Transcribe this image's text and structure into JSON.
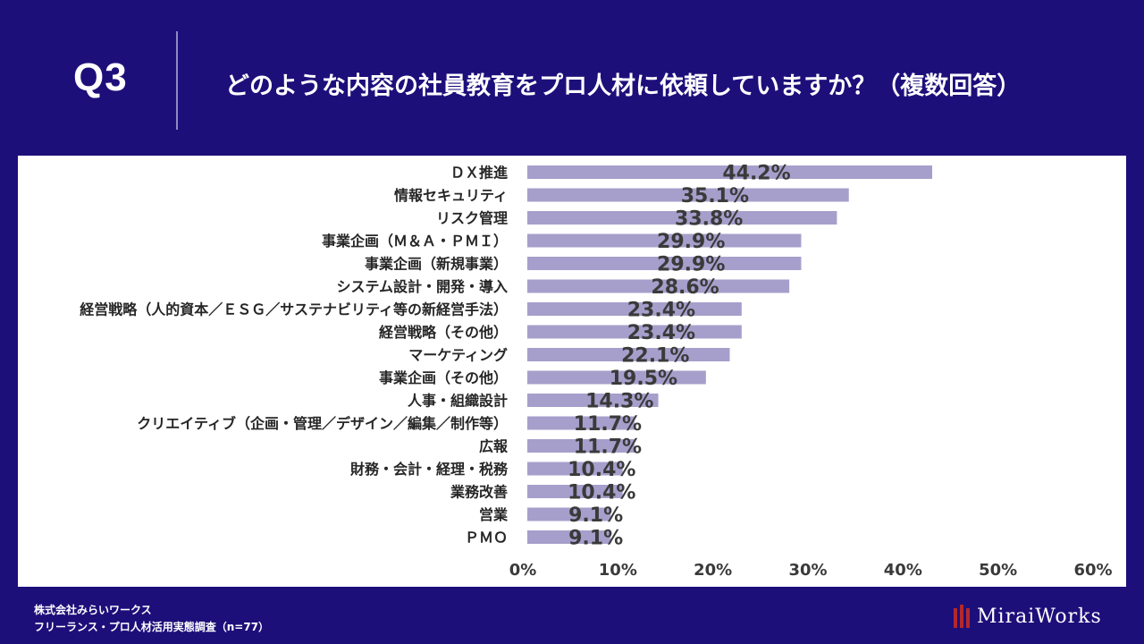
{
  "header": {
    "q_label": "Q3",
    "question": "どのような内容の社員教育をプロ人材に依頼していますか？（複数回答）"
  },
  "chart_data": {
    "type": "bar",
    "orientation": "horizontal",
    "categories": [
      "ＤＸ推進",
      "情報セキュリティ",
      "リスク管理",
      "事業企画（Ｍ＆Ａ・ＰＭＩ）",
      "事業企画（新規事業）",
      "システム設計・開発・導入",
      "経営戦略（人的資本／ＥＳＧ／サステナビリティ等の新経営手法）",
      "経営戦略（その他）",
      "マーケティング",
      "事業企画（その他）",
      "人事・組織設計",
      "クリエイティブ（企画・管理／デザイン／編集／制作等）",
      "広報",
      "財務・会計・経理・税務",
      "業務改善",
      "営業",
      "ＰＭＯ"
    ],
    "values": [
      44.2,
      35.1,
      33.8,
      29.9,
      29.9,
      28.6,
      23.4,
      23.4,
      22.1,
      19.5,
      14.3,
      11.7,
      11.7,
      10.4,
      10.4,
      9.1,
      9.1
    ],
    "value_labels": [
      "44.2%",
      "35.1%",
      "33.8%",
      "29.9%",
      "29.9%",
      "28.6%",
      "23.4%",
      "23.4%",
      "22.1%",
      "19.5%",
      "14.3%",
      "11.7%",
      "11.7%",
      "10.4%",
      "10.4%",
      "9.1%",
      "9.1%"
    ],
    "xlim": [
      0,
      60
    ],
    "ticks": [
      0,
      10,
      20,
      30,
      40,
      50,
      60
    ],
    "tick_labels": [
      "0%",
      "10%",
      "20%",
      "30%",
      "40%",
      "50%",
      "60%"
    ],
    "bar_color": "#a69fcb",
    "grid": false
  },
  "footer": {
    "company": "株式会社みらいワークス",
    "survey": "フリーランス・プロ人材活用実態調査（n=77）",
    "logo_text": "MiraiWorks",
    "logo_color": "#b3282d"
  }
}
